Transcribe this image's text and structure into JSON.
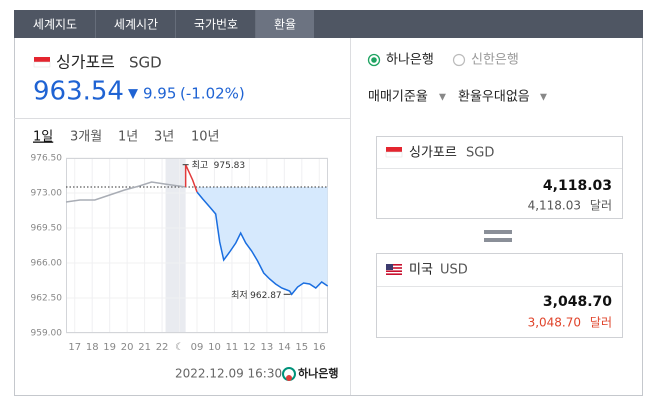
{
  "tabs": [
    "세계지도",
    "세계시간",
    "국가번호",
    "환율"
  ],
  "active_tab": 3,
  "currency": {
    "name": "싱가포르",
    "code": "SGD",
    "price": 963.54,
    "change": 9.95,
    "change_percent_label": "(-1.02%)"
  },
  "periods": [
    "1일",
    "3개월",
    "1년",
    "3년",
    "10년"
  ],
  "active_period": 0,
  "chart_data": {
    "type": "line",
    "x": [
      -0.5,
      0.3,
      1.15,
      2,
      2.85,
      3.7,
      4.4,
      5.15,
      6.35,
      6.35,
      6.75,
      7,
      7.33,
      7.73,
      8.07,
      8.3,
      8.53,
      8.87,
      9.22,
      9.5,
      9.79,
      10.13,
      10.47,
      10.82,
      11.16,
      11.5,
      11.85,
      12.3,
      12.42,
      12.76,
      13.1,
      13.45,
      13.8,
      14.14,
      14.48
    ],
    "series": [
      {
        "color": "#a9adb5",
        "values": [
          972.1,
          972.3,
          972.3,
          972.8,
          973.3,
          973.7,
          974.1,
          973.9,
          973.6,
          null,
          null,
          null,
          null,
          null,
          null,
          null,
          null,
          null,
          null,
          null,
          null,
          null,
          null,
          null,
          null,
          null,
          null,
          null,
          null,
          null,
          null,
          null,
          null,
          null,
          null
        ]
      },
      {
        "color": "#e23a3a",
        "values": [
          null,
          null,
          null,
          null,
          null,
          null,
          null,
          null,
          973.6,
          975.83,
          974.3,
          973.1,
          null,
          null,
          null,
          null,
          null,
          null,
          null,
          null,
          null,
          null,
          null,
          null,
          null,
          null,
          null,
          null,
          null,
          null,
          null,
          null,
          null,
          null,
          null
        ]
      },
      {
        "color": "#1a6ee0",
        "values": [
          null,
          null,
          null,
          null,
          null,
          null,
          null,
          null,
          null,
          null,
          null,
          973.1,
          972.4,
          971.6,
          970.9,
          968.1,
          966.3,
          967.1,
          968.0,
          969.0,
          968.0,
          967.2,
          966.2,
          965.0,
          964.4,
          963.9,
          963.5,
          963.2,
          962.87,
          963.6,
          964.0,
          963.9,
          963.5,
          964.1,
          963.7
        ]
      }
    ],
    "area_color": "#d6e9fd",
    "reference_line": 973.6,
    "shaded_range": [
      5.2,
      6.35
    ],
    "xlim": [
      -0.5,
      14.5
    ],
    "ylim": [
      959,
      976.5
    ],
    "yticks": [
      {
        "value": 976.5,
        "label": "976.50"
      },
      {
        "value": 973,
        "label": "973.00"
      },
      {
        "value": 969.5,
        "label": "969.50"
      },
      {
        "value": 966,
        "label": "966.00"
      },
      {
        "value": 962.5,
        "label": "962.50"
      },
      {
        "value": 959,
        "label": "959.00"
      }
    ],
    "xticks": [
      {
        "value": 0,
        "label": "17"
      },
      {
        "value": 1,
        "label": "18"
      },
      {
        "value": 2,
        "label": "19"
      },
      {
        "value": 3,
        "label": "20"
      },
      {
        "value": 4,
        "label": "21"
      },
      {
        "value": 5,
        "label": "22"
      },
      {
        "value": 6,
        "label": "☾"
      },
      {
        "value": 7,
        "label": "09"
      },
      {
        "value": 8,
        "label": "10"
      },
      {
        "value": 9,
        "label": "11"
      },
      {
        "value": 10,
        "label": "12"
      },
      {
        "value": 11,
        "label": "13"
      },
      {
        "value": 12,
        "label": "14"
      },
      {
        "value": 13,
        "label": "15"
      },
      {
        "value": 14,
        "label": "16"
      }
    ],
    "grid": true,
    "annotations": [
      {
        "text": "최고",
        "value": 975.83,
        "point": 9
      },
      {
        "text": "최저",
        "value": 962.87,
        "point": 28
      }
    ]
  },
  "footer": {
    "timestamp": "2022.12.09 16:30",
    "bank": "하나은행"
  },
  "banks": [
    "하나은행",
    "신한은행"
  ],
  "selected_bank": 0,
  "dropdowns": [
    "매매기준율",
    "환율우대없음"
  ],
  "converter": [
    {
      "name": "싱가포르",
      "code": "SGD",
      "amount": "4,118.03",
      "sub_amount": "4,118.03",
      "unit": "달러"
    },
    {
      "name": "미국",
      "code": "USD",
      "amount": "3,048.70",
      "sub_amount": "3,048.70",
      "unit": "달러"
    }
  ]
}
